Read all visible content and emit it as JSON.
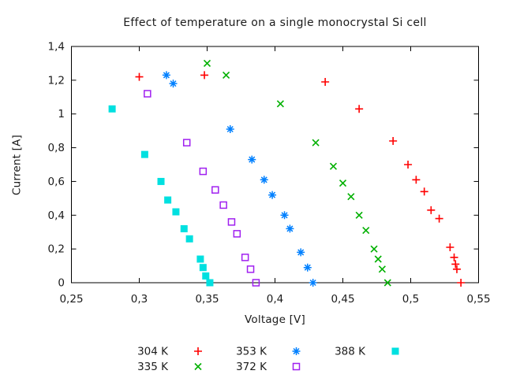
{
  "window": {
    "background": "#ffffff",
    "text_color": "#1b1b1b",
    "axis_color": "#000000"
  },
  "chart_data": {
    "type": "scatter",
    "title": "Effect of temperature on a single monocrystal Si cell",
    "xlabel": "Voltage [V]",
    "ylabel": "Current [A]",
    "xlim": [
      0.25,
      0.55
    ],
    "ylim": [
      0,
      1.4
    ],
    "grid": false,
    "decimal_separator": ",",
    "legend_position": "below-chart, 3 columns, 2 rows",
    "x_ticks": [
      {
        "value": 0.25,
        "label": "0,25"
      },
      {
        "value": 0.3,
        "label": "0,3"
      },
      {
        "value": 0.35,
        "label": "0,35"
      },
      {
        "value": 0.4,
        "label": "0,4"
      },
      {
        "value": 0.45,
        "label": "0,45"
      },
      {
        "value": 0.5,
        "label": "0,5"
      },
      {
        "value": 0.55,
        "label": "0,55"
      }
    ],
    "y_ticks": [
      {
        "value": 0.0,
        "label": "0"
      },
      {
        "value": 0.2,
        "label": "0,2"
      },
      {
        "value": 0.4,
        "label": "0,4"
      },
      {
        "value": 0.6,
        "label": "0,6"
      },
      {
        "value": 0.8,
        "label": "0,8"
      },
      {
        "value": 1.0,
        "label": "1"
      },
      {
        "value": 1.2,
        "label": "1,2"
      },
      {
        "value": 1.4,
        "label": "1,4"
      }
    ],
    "series": [
      {
        "name": "304 K",
        "marker": "plus",
        "color": "#ff0000",
        "points": [
          [
            0.3,
            1.22
          ],
          [
            0.348,
            1.23
          ],
          [
            0.437,
            1.19
          ],
          [
            0.462,
            1.03
          ],
          [
            0.487,
            0.84
          ],
          [
            0.498,
            0.7
          ],
          [
            0.504,
            0.61
          ],
          [
            0.51,
            0.54
          ],
          [
            0.515,
            0.43
          ],
          [
            0.521,
            0.38
          ],
          [
            0.529,
            0.21
          ],
          [
            0.532,
            0.15
          ],
          [
            0.533,
            0.11
          ],
          [
            0.534,
            0.08
          ],
          [
            0.537,
            0.0
          ]
        ]
      },
      {
        "name": "335 K",
        "marker": "cross",
        "color": "#00b000",
        "points": [
          [
            0.35,
            1.3
          ],
          [
            0.364,
            1.23
          ],
          [
            0.404,
            1.06
          ],
          [
            0.43,
            0.83
          ],
          [
            0.443,
            0.69
          ],
          [
            0.45,
            0.59
          ],
          [
            0.456,
            0.51
          ],
          [
            0.462,
            0.4
          ],
          [
            0.467,
            0.31
          ],
          [
            0.473,
            0.2
          ],
          [
            0.476,
            0.14
          ],
          [
            0.479,
            0.08
          ],
          [
            0.483,
            0.0
          ]
        ]
      },
      {
        "name": "353 K",
        "marker": "asterisk",
        "color": "#0080ff",
        "points": [
          [
            0.32,
            1.23
          ],
          [
            0.325,
            1.18
          ],
          [
            0.367,
            0.91
          ],
          [
            0.383,
            0.73
          ],
          [
            0.392,
            0.61
          ],
          [
            0.398,
            0.52
          ],
          [
            0.407,
            0.4
          ],
          [
            0.411,
            0.32
          ],
          [
            0.419,
            0.18
          ],
          [
            0.424,
            0.09
          ],
          [
            0.428,
            0.0
          ]
        ]
      },
      {
        "name": "372 K",
        "marker": "square-open",
        "color": "#a020f0",
        "points": [
          [
            0.306,
            1.12
          ],
          [
            0.335,
            0.83
          ],
          [
            0.347,
            0.66
          ],
          [
            0.356,
            0.55
          ],
          [
            0.362,
            0.46
          ],
          [
            0.368,
            0.36
          ],
          [
            0.372,
            0.29
          ],
          [
            0.378,
            0.15
          ],
          [
            0.382,
            0.08
          ],
          [
            0.386,
            0.0
          ]
        ]
      },
      {
        "name": "388 K",
        "marker": "square-filled",
        "color": "#00e0e0",
        "points": [
          [
            0.28,
            1.03
          ],
          [
            0.304,
            0.76
          ],
          [
            0.316,
            0.6
          ],
          [
            0.321,
            0.49
          ],
          [
            0.327,
            0.42
          ],
          [
            0.333,
            0.32
          ],
          [
            0.337,
            0.26
          ],
          [
            0.345,
            0.14
          ],
          [
            0.347,
            0.09
          ],
          [
            0.349,
            0.04
          ],
          [
            0.352,
            0.0
          ]
        ]
      }
    ],
    "legend_rows": [
      [
        "304 K",
        "353 K",
        "388 K"
      ],
      [
        "335 K",
        "372 K"
      ]
    ]
  }
}
